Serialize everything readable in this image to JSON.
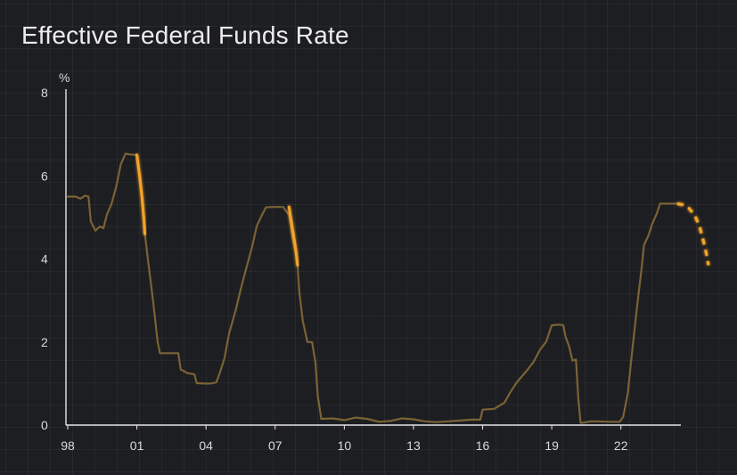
{
  "chart_data": {
    "type": "line",
    "title": "Effective Federal Funds Rate",
    "ylabel": "%",
    "xlabel": "",
    "xlim": [
      1998.0,
      2025.8
    ],
    "ylim": [
      0,
      8
    ],
    "xticks": [
      {
        "x": 1998,
        "label": "98"
      },
      {
        "x": 2001,
        "label": "01"
      },
      {
        "x": 2004,
        "label": "04"
      },
      {
        "x": 2007,
        "label": "07"
      },
      {
        "x": 2010,
        "label": "10"
      },
      {
        "x": 2013,
        "label": "13"
      },
      {
        "x": 2016,
        "label": "16"
      },
      {
        "x": 2019,
        "label": "19"
      },
      {
        "x": 2022,
        "label": "22"
      }
    ],
    "yticks": [
      {
        "y": 0,
        "label": "0"
      },
      {
        "y": 2,
        "label": "2"
      },
      {
        "y": 4,
        "label": "4"
      },
      {
        "y": 6,
        "label": "6"
      },
      {
        "y": 8,
        "label": "8"
      }
    ],
    "grid": true,
    "colors": {
      "background": "#1d1e22",
      "series": "#7a6334",
      "highlight": "#f4a42c",
      "projection": "#f4a42c",
      "axis": "#e6e6e6",
      "text": "#d9d9d9"
    },
    "series": [
      {
        "style": "historical",
        "points": [
          [
            1998.0,
            5.5
          ],
          [
            1998.35,
            5.5
          ],
          [
            1998.55,
            5.45
          ],
          [
            1998.75,
            5.52
          ],
          [
            1998.9,
            5.5
          ],
          [
            1999.0,
            4.9
          ],
          [
            1999.2,
            4.68
          ],
          [
            1999.4,
            4.78
          ],
          [
            1999.55,
            4.74
          ],
          [
            1999.7,
            5.07
          ],
          [
            1999.9,
            5.32
          ],
          [
            2000.1,
            5.73
          ],
          [
            2000.3,
            6.27
          ],
          [
            2000.5,
            6.53
          ],
          [
            2000.75,
            6.51
          ],
          [
            2001.0,
            6.5
          ],
          [
            2001.2,
            5.5
          ],
          [
            2001.35,
            4.6
          ],
          [
            2001.5,
            3.9
          ],
          [
            2001.7,
            3.0
          ],
          [
            2001.9,
            2.0
          ],
          [
            2002.0,
            1.73
          ],
          [
            2002.4,
            1.73
          ],
          [
            2002.8,
            1.73
          ],
          [
            2002.9,
            1.34
          ],
          [
            2003.2,
            1.25
          ],
          [
            2003.5,
            1.22
          ],
          [
            2003.6,
            1.01
          ],
          [
            2003.9,
            1.0
          ],
          [
            2004.2,
            1.0
          ],
          [
            2004.45,
            1.03
          ],
          [
            2004.6,
            1.26
          ],
          [
            2004.8,
            1.61
          ],
          [
            2005.0,
            2.2
          ],
          [
            2005.3,
            2.79
          ],
          [
            2005.5,
            3.26
          ],
          [
            2005.75,
            3.78
          ],
          [
            2006.0,
            4.29
          ],
          [
            2006.2,
            4.79
          ],
          [
            2006.4,
            5.03
          ],
          [
            2006.6,
            5.24
          ],
          [
            2007.0,
            5.25
          ],
          [
            2007.35,
            5.25
          ],
          [
            2007.6,
            5.05
          ],
          [
            2007.75,
            4.5
          ],
          [
            2007.95,
            4.0
          ],
          [
            2008.05,
            3.2
          ],
          [
            2008.2,
            2.5
          ],
          [
            2008.4,
            2.0
          ],
          [
            2008.6,
            2.0
          ],
          [
            2008.75,
            1.5
          ],
          [
            2008.85,
            0.7
          ],
          [
            2009.0,
            0.15
          ],
          [
            2009.5,
            0.16
          ],
          [
            2010.0,
            0.12
          ],
          [
            2010.5,
            0.18
          ],
          [
            2011.0,
            0.15
          ],
          [
            2011.5,
            0.08
          ],
          [
            2012.0,
            0.1
          ],
          [
            2012.5,
            0.16
          ],
          [
            2013.0,
            0.14
          ],
          [
            2013.5,
            0.09
          ],
          [
            2014.0,
            0.07
          ],
          [
            2014.5,
            0.09
          ],
          [
            2015.0,
            0.11
          ],
          [
            2015.5,
            0.13
          ],
          [
            2015.9,
            0.13
          ],
          [
            2016.0,
            0.37
          ],
          [
            2016.5,
            0.39
          ],
          [
            2016.95,
            0.54
          ],
          [
            2017.2,
            0.79
          ],
          [
            2017.5,
            1.04
          ],
          [
            2017.9,
            1.3
          ],
          [
            2018.2,
            1.51
          ],
          [
            2018.5,
            1.82
          ],
          [
            2018.75,
            2.0
          ],
          [
            2019.0,
            2.4
          ],
          [
            2019.3,
            2.42
          ],
          [
            2019.5,
            2.4
          ],
          [
            2019.6,
            2.13
          ],
          [
            2019.75,
            1.9
          ],
          [
            2019.9,
            1.55
          ],
          [
            2020.05,
            1.58
          ],
          [
            2020.15,
            0.65
          ],
          [
            2020.25,
            0.05
          ],
          [
            2020.7,
            0.09
          ],
          [
            2021.0,
            0.09
          ],
          [
            2021.5,
            0.08
          ],
          [
            2021.95,
            0.08
          ],
          [
            2022.1,
            0.2
          ],
          [
            2022.3,
            0.77
          ],
          [
            2022.45,
            1.58
          ],
          [
            2022.6,
            2.33
          ],
          [
            2022.75,
            3.08
          ],
          [
            2022.9,
            3.78
          ],
          [
            2023.0,
            4.33
          ],
          [
            2023.2,
            4.57
          ],
          [
            2023.35,
            4.83
          ],
          [
            2023.55,
            5.08
          ],
          [
            2023.7,
            5.33
          ],
          [
            2024.0,
            5.33
          ],
          [
            2024.3,
            5.33
          ],
          [
            2024.6,
            5.33
          ]
        ]
      },
      {
        "style": "highlight",
        "points": [
          [
            2001.0,
            6.5
          ],
          [
            2001.12,
            6.0
          ],
          [
            2001.22,
            5.5
          ],
          [
            2001.3,
            5.0
          ],
          [
            2001.35,
            4.6
          ]
        ]
      },
      {
        "style": "highlight",
        "points": [
          [
            2007.6,
            5.25
          ],
          [
            2007.7,
            4.9
          ],
          [
            2007.8,
            4.55
          ],
          [
            2007.9,
            4.2
          ],
          [
            2007.97,
            3.85
          ]
        ]
      },
      {
        "style": "projection",
        "points": [
          [
            2024.45,
            5.33
          ],
          [
            2024.7,
            5.3
          ],
          [
            2024.95,
            5.22
          ],
          [
            2025.2,
            5.05
          ],
          [
            2025.4,
            4.8
          ],
          [
            2025.55,
            4.5
          ],
          [
            2025.68,
            4.2
          ],
          [
            2025.8,
            3.85
          ]
        ]
      }
    ]
  }
}
